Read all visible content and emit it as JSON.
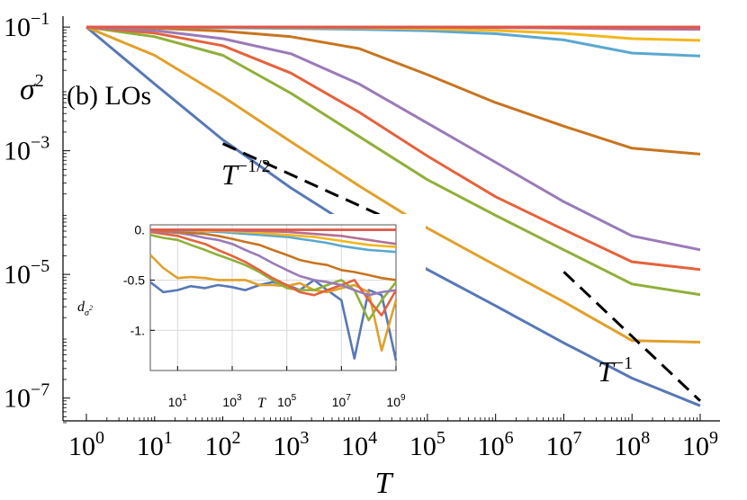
{
  "chart_data": [
    {
      "type": "line",
      "scale": "log-log",
      "xlabel": "T",
      "ylabel": "σ",
      "ylabel_sup": "2",
      "panel_label": "(b) LOs",
      "xlim": [
        1,
        1000000000
      ],
      "ylim": [
        4e-08,
        0.15
      ],
      "x_ticks": [
        {
          "base": "10",
          "exp": "0"
        },
        {
          "base": "10",
          "exp": "1"
        },
        {
          "base": "10",
          "exp": "2"
        },
        {
          "base": "10",
          "exp": "3"
        },
        {
          "base": "10",
          "exp": "4"
        },
        {
          "base": "10",
          "exp": "5"
        },
        {
          "base": "10",
          "exp": "6"
        },
        {
          "base": "10",
          "exp": "7"
        },
        {
          "base": "10",
          "exp": "8"
        },
        {
          "base": "10",
          "exp": "9"
        }
      ],
      "y_ticks": [
        {
          "base": "10",
          "exp": "−1"
        },
        {
          "base": "10",
          "exp": "−3"
        },
        {
          "base": "10",
          "exp": "−5"
        },
        {
          "base": "10",
          "exp": "−7"
        }
      ],
      "grid": false,
      "x": [
        1,
        10,
        100,
        1000,
        10000,
        100000,
        1000000,
        10000000,
        100000000,
        1000000000
      ],
      "series": [
        {
          "color": "#5778b6",
          "values": [
            0.1,
            0.012,
            0.0015,
            0.00025,
            5e-05,
            1.2e-05,
            3.1e-06,
            7.8e-07,
            2.1e-07,
            7.5e-08
          ]
        },
        {
          "color": "#e0a02a",
          "values": [
            0.1,
            0.035,
            0.0075,
            0.0014,
            0.00027,
            5.6e-05,
            1.4e-05,
            3.6e-06,
            8.5e-07,
            8e-07
          ]
        },
        {
          "color": "#8fb03a",
          "values": [
            0.1,
            0.07,
            0.035,
            0.0085,
            0.0017,
            0.00034,
            9e-05,
            2.5e-05,
            7e-06,
            4.7e-06
          ]
        },
        {
          "color": "#e5623c",
          "values": [
            0.1,
            0.08,
            0.05,
            0.018,
            0.0042,
            0.00082,
            0.00018,
            5.3e-05,
            1.6e-05,
            1.2e-05
          ]
        },
        {
          "color": "#9a7ab9",
          "values": [
            0.1,
            0.088,
            0.065,
            0.037,
            0.012,
            0.0028,
            0.00065,
            0.00015,
            4.2e-05,
            2.5e-05
          ]
        },
        {
          "color": "#c8741f",
          "values": [
            0.1,
            0.096,
            0.086,
            0.07,
            0.045,
            0.017,
            0.006,
            0.0025,
            0.0011,
            0.00088
          ]
        },
        {
          "color": "#5aa8d1",
          "values": [
            0.1,
            0.099,
            0.097,
            0.095,
            0.092,
            0.087,
            0.078,
            0.062,
            0.038,
            0.034
          ]
        },
        {
          "color": "#f2b71d",
          "values": [
            0.1,
            0.1,
            0.099,
            0.098,
            0.097,
            0.094,
            0.088,
            0.079,
            0.065,
            0.061
          ]
        },
        {
          "color": "#b56e94",
          "values": [
            0.1,
            0.1,
            0.1,
            0.1,
            0.099,
            0.099,
            0.098,
            0.096,
            0.093,
            0.092
          ]
        },
        {
          "color": "#d98b3b",
          "values": [
            0.1,
            0.1,
            0.1,
            0.1,
            0.1,
            0.1,
            0.1,
            0.1,
            0.1,
            0.1
          ]
        },
        {
          "color": "#e0564c",
          "values": [
            0.1,
            0.1,
            0.1,
            0.1,
            0.1,
            0.1,
            0.1,
            0.1,
            0.1,
            0.1
          ]
        }
      ],
      "reference_lines": [
        {
          "label_base": "T",
          "label_exp": "−1/2",
          "x": [
            100,
            50000
          ],
          "y": [
            0.0013,
            5.8e-05
          ],
          "style": "dashed"
        },
        {
          "label_base": "T",
          "label_exp": "−1",
          "x": [
            10000000,
            1000000000
          ],
          "y": [
            1.1e-05,
            9e-08
          ],
          "style": "dashed"
        }
      ]
    },
    {
      "type": "line",
      "role": "inset",
      "x_scale": "log",
      "xlabel": "T",
      "ylabel": "d",
      "ylabel_sub": "σ",
      "ylabel_sub_sup": "2",
      "xlim": [
        1,
        1000000000
      ],
      "ylim": [
        -1.4,
        0.05
      ],
      "x_ticks": [
        {
          "base": "10",
          "exp": "1"
        },
        {
          "base": "10",
          "exp": "3"
        },
        {
          "base": "10",
          "exp": "5"
        },
        {
          "base": "10",
          "exp": "7"
        },
        {
          "base": "10",
          "exp": "9"
        }
      ],
      "y_ticks": [
        "0.",
        "-0.5",
        "-1."
      ],
      "y_tick_values": [
        0,
        -0.5,
        -1
      ],
      "grid": true,
      "x": [
        1,
        3,
        10,
        30,
        100,
        300,
        1000,
        3000,
        10000,
        30000,
        100000,
        300000,
        1000000,
        3000000,
        10000000,
        30000000,
        100000000,
        300000000,
        1000000000
      ],
      "series": [
        {
          "color": "#5778b6",
          "values": [
            -0.52,
            -0.62,
            -0.6,
            -0.56,
            -0.58,
            -0.55,
            -0.57,
            -0.6,
            -0.55,
            -0.52,
            -0.55,
            -0.6,
            -0.5,
            -0.6,
            -0.7,
            -1.28,
            -0.6,
            -0.65,
            -1.3
          ]
        },
        {
          "color": "#e0a02a",
          "values": [
            -0.25,
            -0.38,
            -0.48,
            -0.47,
            -0.48,
            -0.5,
            -0.5,
            -0.5,
            -0.55,
            -0.55,
            -0.56,
            -0.53,
            -0.6,
            -0.62,
            -0.58,
            -0.55,
            -0.62,
            -1.2,
            -0.7
          ]
        },
        {
          "color": "#8fb03a",
          "values": [
            -0.05,
            -0.08,
            -0.1,
            -0.15,
            -0.2,
            -0.25,
            -0.3,
            -0.35,
            -0.42,
            -0.5,
            -0.58,
            -0.6,
            -0.6,
            -0.55,
            -0.5,
            -0.6,
            -0.9,
            -0.7,
            -0.52
          ]
        },
        {
          "color": "#e5623c",
          "values": [
            -0.02,
            -0.04,
            -0.06,
            -0.1,
            -0.14,
            -0.2,
            -0.26,
            -0.32,
            -0.4,
            -0.48,
            -0.55,
            -0.62,
            -0.65,
            -0.6,
            -0.55,
            -0.5,
            -0.7,
            -0.85,
            -0.6
          ]
        },
        {
          "color": "#9a7ab9",
          "values": [
            -0.01,
            -0.02,
            -0.03,
            -0.05,
            -0.08,
            -0.1,
            -0.14,
            -0.2,
            -0.26,
            -0.33,
            -0.4,
            -0.46,
            -0.5,
            -0.52,
            -0.55,
            -0.6,
            -0.65,
            -0.62,
            -0.6
          ]
        },
        {
          "color": "#c8741f",
          "values": [
            0,
            -0.01,
            -0.02,
            -0.03,
            -0.04,
            -0.06,
            -0.09,
            -0.12,
            -0.15,
            -0.2,
            -0.25,
            -0.3,
            -0.33,
            -0.35,
            -0.4,
            -0.42,
            -0.45,
            -0.48,
            -0.5
          ]
        },
        {
          "color": "#5aa8d1",
          "values": [
            0,
            0,
            -0.005,
            -0.01,
            -0.015,
            -0.02,
            -0.03,
            -0.04,
            -0.05,
            -0.06,
            -0.07,
            -0.09,
            -0.11,
            -0.13,
            -0.16,
            -0.18,
            -0.2,
            -0.21,
            -0.22
          ]
        },
        {
          "color": "#f2b71d",
          "values": [
            0,
            0,
            0,
            -0.005,
            -0.01,
            -0.01,
            -0.015,
            -0.02,
            -0.03,
            -0.04,
            -0.05,
            -0.06,
            -0.07,
            -0.09,
            -0.11,
            -0.13,
            -0.15,
            -0.16,
            -0.17
          ]
        },
        {
          "color": "#b56e94",
          "values": [
            0,
            0,
            0,
            0,
            0,
            -0.005,
            -0.005,
            -0.01,
            -0.01,
            -0.015,
            -0.02,
            -0.03,
            -0.04,
            -0.05,
            -0.06,
            -0.08,
            -0.1,
            -0.12,
            -0.14
          ]
        },
        {
          "color": "#d98b3b",
          "values": [
            0,
            0,
            0,
            0,
            0,
            0,
            0,
            0,
            0,
            0,
            0,
            0,
            0,
            0,
            0,
            0,
            0,
            0,
            0
          ]
        },
        {
          "color": "#e0564c",
          "values": [
            0,
            0,
            0,
            0,
            0,
            0,
            0,
            0,
            0,
            0,
            0,
            0,
            0,
            0,
            0,
            0,
            0,
            0,
            0
          ]
        }
      ]
    }
  ]
}
